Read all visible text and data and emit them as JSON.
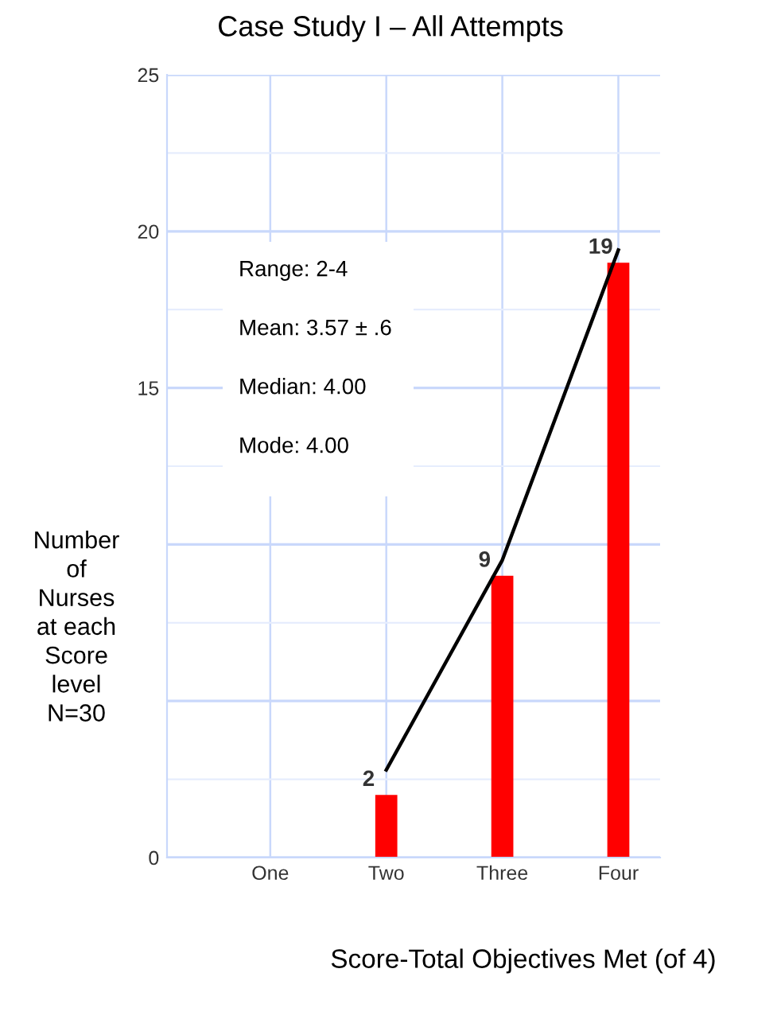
{
  "chart_data": {
    "type": "bar",
    "title": "Case Study I – All Attempts",
    "xlabel": "Score-Total Objectives Met (of 4)",
    "ylabel": "Number\nof\nNurses\nat each\nScore\nlevel\nN=30",
    "categories": [
      "One",
      "Two",
      "Three",
      "Four"
    ],
    "series": [
      {
        "color": "#ff0000",
        "values": [
          0,
          2,
          9,
          19
        ],
        "value_labels": [
          null,
          "2",
          "9",
          "19"
        ]
      },
      {
        "type": "line",
        "color": "#000000",
        "values": [
          null,
          2.8,
          9.5,
          19.4
        ]
      }
    ],
    "ylim": [
      0,
      25
    ],
    "yticks": [
      0,
      {
        "value": 5,
        "label": null
      },
      {
        "value": 10,
        "label": null
      },
      15,
      20,
      25
    ],
    "grid": true,
    "line_style": "solid",
    "marker": "none",
    "annotations": [
      "Range: 2-4",
      "Mean: 3.57 ± .6",
      "Median: 4.00",
      "Mode: 4.00"
    ]
  }
}
